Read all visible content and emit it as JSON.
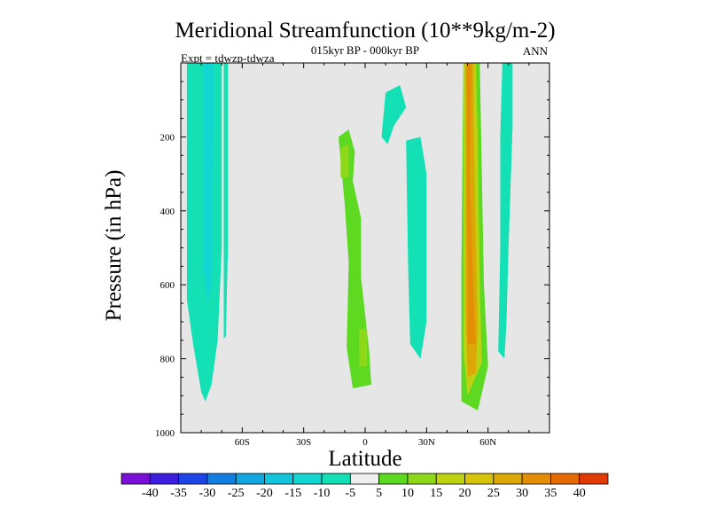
{
  "chart_data": {
    "type": "heatmap",
    "title": "Meridional Streamfunction (10**9kg/m-2)",
    "subtitle": "015kyr BP - 000kyr BP",
    "left_label": "Expt = tdwzp-tdwza",
    "right_label": "ANN",
    "xlabel": "Latitude",
    "ylabel": "Pressure (in hPa)",
    "xlim": [
      -90,
      90
    ],
    "ylim": [
      1000,
      0
    ],
    "x_ticks": [
      {
        "value": -60,
        "label": "60S"
      },
      {
        "value": -30,
        "label": "30S"
      },
      {
        "value": 0,
        "label": "0"
      },
      {
        "value": 30,
        "label": "30N"
      },
      {
        "value": 60,
        "label": "60N"
      }
    ],
    "y_ticks": [
      {
        "value": 200,
        "label": "200"
      },
      {
        "value": 400,
        "label": "400"
      },
      {
        "value": 600,
        "label": "600"
      },
      {
        "value": 800,
        "label": "800"
      },
      {
        "value": 1000,
        "label": "1000"
      }
    ],
    "colorbar": {
      "labels": [
        "-40",
        "-35",
        "-30",
        "-25",
        "-20",
        "-15",
        "-10",
        "-5",
        "5",
        "10",
        "15",
        "20",
        "25",
        "30",
        "35",
        "40"
      ],
      "colors": [
        "#7a10d8",
        "#3c1ee0",
        "#1f44e6",
        "#137ee2",
        "#11a6e0",
        "#12c4dc",
        "#12d6d2",
        "#13e0b4",
        "#efefef",
        "#5cd920",
        "#8ed81a",
        "#bdd312",
        "#d6c40b",
        "#dca806",
        "#e38e05",
        "#e66a04",
        "#e23a04"
      ]
    },
    "regions": [
      {
        "name": "sh-positive-band-outer",
        "level": -10,
        "points": [
          [
            -87,
            0
          ],
          [
            -70,
            0
          ],
          [
            -70,
            500
          ],
          [
            -72,
            750
          ],
          [
            -75,
            870
          ],
          [
            -78,
            915
          ],
          [
            -80,
            890
          ],
          [
            -84,
            760
          ],
          [
            -87,
            640
          ]
        ]
      },
      {
        "name": "sh-negative-core",
        "level": -15,
        "points": [
          [
            -79,
            0
          ],
          [
            -74,
            0
          ],
          [
            -74,
            150
          ],
          [
            -75,
            600
          ],
          [
            -77,
            650
          ],
          [
            -79,
            550
          ]
        ]
      },
      {
        "name": "sh-narrow-band",
        "level": -10,
        "points": [
          [
            -69,
            0
          ],
          [
            -67,
            0
          ],
          [
            -67,
            500
          ],
          [
            -68,
            740
          ],
          [
            -69,
            745
          ],
          [
            -69,
            600
          ]
        ]
      },
      {
        "name": "tropics-positive-band",
        "level": 5,
        "points": [
          [
            -10,
            10
          ],
          [
            -10,
            100
          ],
          [
            -17,
            150
          ],
          [
            -20,
            250
          ],
          [
            -15,
            400
          ],
          [
            -15,
            780
          ],
          [
            -13,
            920
          ],
          [
            -5,
            925
          ],
          [
            7,
            910
          ],
          [
            10,
            800
          ],
          [
            9,
            500
          ],
          [
            5,
            320
          ],
          [
            2,
            150
          ],
          [
            -6,
            100
          ],
          [
            -9,
            0
          ]
        ]
      },
      {
        "name": "tropics-positive-band-2",
        "level": 5,
        "points": [
          [
            8,
            0
          ],
          [
            10,
            0
          ],
          [
            10,
            80
          ],
          [
            8,
            100
          ]
        ]
      },
      {
        "name": "tropics-inner-core",
        "level": 10,
        "points": [
          [
            -13,
            200
          ],
          [
            -8,
            180
          ],
          [
            -5,
            240
          ],
          [
            -6,
            320
          ],
          [
            -2,
            420
          ],
          [
            -2,
            580
          ],
          [
            2,
            780
          ],
          [
            3,
            870
          ],
          [
            -6,
            880
          ],
          [
            -9,
            770
          ],
          [
            -8,
            540
          ],
          [
            -10,
            380
          ]
        ]
      },
      {
        "name": "tropics-upper-core",
        "level": 15,
        "points": [
          [
            -12,
            230
          ],
          [
            -8,
            220
          ],
          [
            -8,
            310
          ],
          [
            -12,
            310
          ]
        ]
      },
      {
        "name": "tropics-lower-core",
        "level": 15,
        "points": [
          [
            -3,
            720
          ],
          [
            1,
            720
          ],
          [
            1,
            820
          ],
          [
            -3,
            820
          ]
        ]
      },
      {
        "name": "tropical-negative-strip",
        "level": -10,
        "points": [
          [
            10,
            80
          ],
          [
            17,
            60
          ],
          [
            20,
            120
          ],
          [
            14,
            170
          ],
          [
            11,
            220
          ],
          [
            8,
            200
          ]
        ]
      },
      {
        "name": "subtropic-negative",
        "level": -10,
        "points": [
          [
            20,
            210
          ],
          [
            27,
            200
          ],
          [
            30,
            300
          ],
          [
            30,
            700
          ],
          [
            27,
            800
          ],
          [
            22,
            760
          ],
          [
            21,
            550
          ]
        ]
      },
      {
        "name": "nh-band-outer",
        "level": 5,
        "points": [
          [
            46,
            0
          ],
          [
            59,
            0
          ],
          [
            61,
            200
          ],
          [
            62,
            500
          ],
          [
            65,
            820
          ],
          [
            64,
            930
          ],
          [
            58,
            955
          ],
          [
            52,
            970
          ],
          [
            45,
            950
          ],
          [
            45,
            700
          ],
          [
            46,
            400
          ]
        ]
      },
      {
        "name": "nh-band-mid",
        "level": 10,
        "points": [
          [
            48,
            0
          ],
          [
            56,
            0
          ],
          [
            57,
            300
          ],
          [
            58,
            600
          ],
          [
            60,
            820
          ],
          [
            55,
            940
          ],
          [
            47,
            915
          ],
          [
            47,
            560
          ]
        ]
      },
      {
        "name": "nh-band-yellow",
        "level": 20,
        "points": [
          [
            48,
            0
          ],
          [
            54,
            0
          ],
          [
            55,
            200
          ],
          [
            56,
            600
          ],
          [
            57,
            810
          ],
          [
            50,
            900
          ],
          [
            48,
            780
          ],
          [
            48,
            400
          ]
        ]
      },
      {
        "name": "nh-band-core",
        "level": 30,
        "points": [
          [
            49,
            0
          ],
          [
            53,
            0
          ],
          [
            53,
            150
          ],
          [
            54,
            480
          ],
          [
            55,
            720
          ],
          [
            54,
            840
          ],
          [
            50,
            850
          ],
          [
            49,
            650
          ]
        ]
      },
      {
        "name": "nh-band-hot",
        "level": 35,
        "points": [
          [
            49.5,
            0
          ],
          [
            52,
            0
          ],
          [
            51,
            300
          ],
          [
            53,
            650
          ],
          [
            54,
            760
          ],
          [
            50,
            760
          ],
          [
            50,
            500
          ]
        ]
      },
      {
        "name": "nh-negative-strip",
        "level": -10,
        "points": [
          [
            67,
            0
          ],
          [
            72,
            0
          ],
          [
            72,
            170
          ],
          [
            70,
            500
          ],
          [
            69,
            700
          ],
          [
            68,
            800
          ],
          [
            65,
            780
          ],
          [
            66,
            500
          ],
          [
            66,
            200
          ]
        ]
      }
    ]
  }
}
